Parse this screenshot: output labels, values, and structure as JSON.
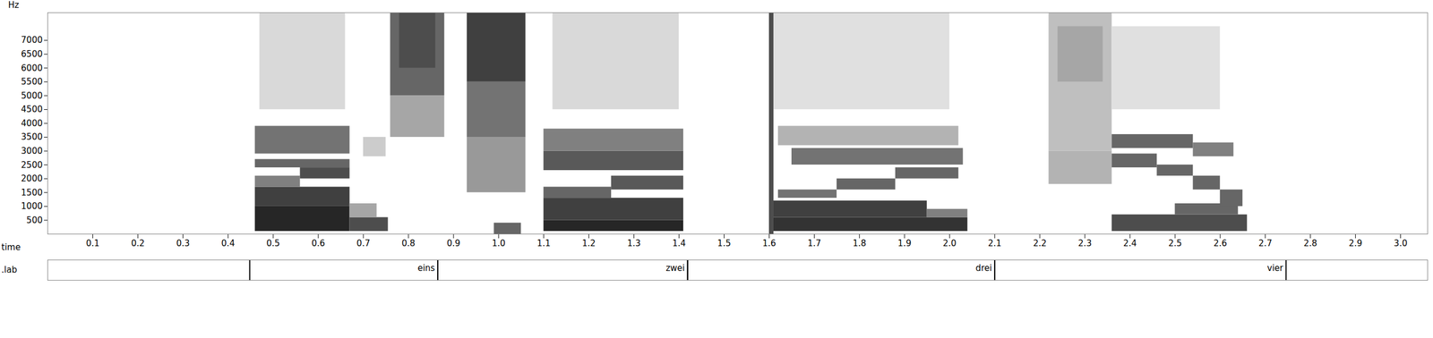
{
  "chart_data": {
    "type": "spectrogram",
    "ylabel": "Hz",
    "xlabel": "time",
    "xlim": [
      0,
      3.06
    ],
    "ylim": [
      0,
      8000
    ],
    "xticks": [
      0.1,
      0.2,
      0.3,
      0.4,
      0.5,
      0.6,
      0.7,
      0.8,
      0.9,
      {
        "value": 1,
        "label": "1.0"
      },
      1.1,
      1.2,
      1.3,
      1.4,
      1.5,
      1.6,
      1.7,
      1.8,
      1.9,
      {
        "value": 2,
        "label": "2.0"
      },
      2.1,
      2.2,
      2.3,
      2.4,
      2.5,
      2.6,
      2.7,
      2.8,
      2.9,
      {
        "value": 3,
        "label": "3.0"
      }
    ],
    "yticks": [
      500,
      1000,
      1500,
      2000,
      2500,
      3000,
      3500,
      4000,
      4500,
      5000,
      5500,
      6000,
      6500,
      7000
    ],
    "level_range": [
      0,
      1
    ],
    "color": "#000000",
    "cells": [
      {
        "t0": 0.46,
        "t1": 0.67,
        "f0": 100,
        "f1": 1000,
        "level": 0.85
      },
      {
        "t0": 0.46,
        "t1": 0.67,
        "f0": 1000,
        "f1": 1700,
        "level": 0.75
      },
      {
        "t0": 0.46,
        "t1": 0.56,
        "f0": 1700,
        "f1": 2100,
        "level": 0.5
      },
      {
        "t0": 0.56,
        "t1": 0.67,
        "f0": 2000,
        "f1": 2400,
        "level": 0.7
      },
      {
        "t0": 0.46,
        "t1": 0.67,
        "f0": 2400,
        "f1": 2700,
        "level": 0.6
      },
      {
        "t0": 0.46,
        "t1": 0.67,
        "f0": 2900,
        "f1": 3900,
        "level": 0.55
      },
      {
        "t0": 0.67,
        "t1": 0.755,
        "f0": 100,
        "f1": 600,
        "level": 0.7
      },
      {
        "t0": 0.67,
        "t1": 0.73,
        "f0": 600,
        "f1": 1100,
        "level": 0.35
      },
      {
        "t0": 0.47,
        "t1": 0.66,
        "f0": 4500,
        "f1": 8000,
        "level": 0.15
      },
      {
        "t0": 0.7,
        "t1": 0.75,
        "f0": 2800,
        "f1": 3500,
        "level": 0.2
      },
      {
        "t0": 0.76,
        "t1": 0.88,
        "f0": 3500,
        "f1": 5000,
        "level": 0.35
      },
      {
        "t0": 0.76,
        "t1": 0.88,
        "f0": 5000,
        "f1": 8000,
        "level": 0.6
      },
      {
        "t0": 0.78,
        "t1": 0.86,
        "f0": 6000,
        "f1": 8000,
        "level": 0.7
      },
      {
        "t0": 0.93,
        "t1": 1.06,
        "f0": 1500,
        "f1": 3500,
        "level": 0.4
      },
      {
        "t0": 0.93,
        "t1": 1.06,
        "f0": 3500,
        "f1": 5500,
        "level": 0.55
      },
      {
        "t0": 0.93,
        "t1": 1.06,
        "f0": 5500,
        "f1": 8000,
        "level": 0.75
      },
      {
        "t0": 0.99,
        "t1": 1.05,
        "f0": 0,
        "f1": 400,
        "level": 0.6
      },
      {
        "t0": 1.1,
        "t1": 1.41,
        "f0": 100,
        "f1": 500,
        "level": 0.85
      },
      {
        "t0": 1.1,
        "t1": 1.41,
        "f0": 500,
        "f1": 1300,
        "level": 0.75
      },
      {
        "t0": 1.1,
        "t1": 1.25,
        "f0": 1300,
        "f1": 1700,
        "level": 0.6
      },
      {
        "t0": 1.25,
        "t1": 1.41,
        "f0": 1600,
        "f1": 2100,
        "level": 0.65
      },
      {
        "t0": 1.1,
        "t1": 1.41,
        "f0": 2300,
        "f1": 3000,
        "level": 0.65
      },
      {
        "t0": 1.1,
        "t1": 1.41,
        "f0": 3000,
        "f1": 3800,
        "level": 0.5
      },
      {
        "t0": 1.12,
        "t1": 1.4,
        "f0": 4500,
        "f1": 8000,
        "level": 0.15
      },
      {
        "t0": 1.6,
        "t1": 1.61,
        "f0": 0,
        "f1": 8000,
        "level": 0.7
      },
      {
        "t0": 1.61,
        "t1": 2.04,
        "f0": 100,
        "f1": 600,
        "level": 0.8
      },
      {
        "t0": 1.61,
        "t1": 1.95,
        "f0": 600,
        "f1": 1200,
        "level": 0.75
      },
      {
        "t0": 1.95,
        "t1": 2.04,
        "f0": 600,
        "f1": 900,
        "level": 0.5
      },
      {
        "t0": 1.62,
        "t1": 1.75,
        "f0": 1300,
        "f1": 1600,
        "level": 0.55
      },
      {
        "t0": 1.75,
        "t1": 1.88,
        "f0": 1600,
        "f1": 2000,
        "level": 0.6
      },
      {
        "t0": 1.88,
        "t1": 2.02,
        "f0": 2000,
        "f1": 2400,
        "level": 0.6
      },
      {
        "t0": 1.65,
        "t1": 2.03,
        "f0": 2500,
        "f1": 3100,
        "level": 0.55
      },
      {
        "t0": 1.62,
        "t1": 2.02,
        "f0": 3200,
        "f1": 3900,
        "level": 0.3
      },
      {
        "t0": 1.61,
        "t1": 2.0,
        "f0": 4500,
        "f1": 8000,
        "level": 0.12
      },
      {
        "t0": 2.22,
        "t1": 2.36,
        "f0": 1800,
        "f1": 3000,
        "level": 0.3
      },
      {
        "t0": 2.22,
        "t1": 2.36,
        "f0": 3000,
        "f1": 8000,
        "level": 0.25
      },
      {
        "t0": 2.24,
        "t1": 2.34,
        "f0": 5500,
        "f1": 7500,
        "level": 0.35
      },
      {
        "t0": 2.36,
        "t1": 2.66,
        "f0": 100,
        "f1": 700,
        "level": 0.7
      },
      {
        "t0": 2.5,
        "t1": 2.64,
        "f0": 700,
        "f1": 1100,
        "level": 0.6
      },
      {
        "t0": 2.36,
        "t1": 2.46,
        "f0": 2400,
        "f1": 2900,
        "level": 0.6
      },
      {
        "t0": 2.46,
        "t1": 2.54,
        "f0": 2100,
        "f1": 2500,
        "level": 0.6
      },
      {
        "t0": 2.54,
        "t1": 2.6,
        "f0": 1600,
        "f1": 2100,
        "level": 0.6
      },
      {
        "t0": 2.6,
        "t1": 2.65,
        "f0": 1000,
        "f1": 1600,
        "level": 0.6
      },
      {
        "t0": 2.36,
        "t1": 2.54,
        "f0": 3100,
        "f1": 3600,
        "level": 0.6
      },
      {
        "t0": 2.54,
        "t1": 2.63,
        "f0": 2800,
        "f1": 3300,
        "level": 0.5
      },
      {
        "t0": 2.36,
        "t1": 2.6,
        "f0": 4500,
        "f1": 7500,
        "level": 0.12
      }
    ],
    "tier_name": ".lab",
    "segments": [
      {
        "label": "eins",
        "start": 0.448,
        "end": 0.865
      },
      {
        "label": "zwei",
        "start": 0.865,
        "end": 1.419
      },
      {
        "label": "drei",
        "start": 1.419,
        "end": 2.1
      },
      {
        "label": "vier",
        "start": 2.1,
        "end": 2.746
      }
    ]
  }
}
